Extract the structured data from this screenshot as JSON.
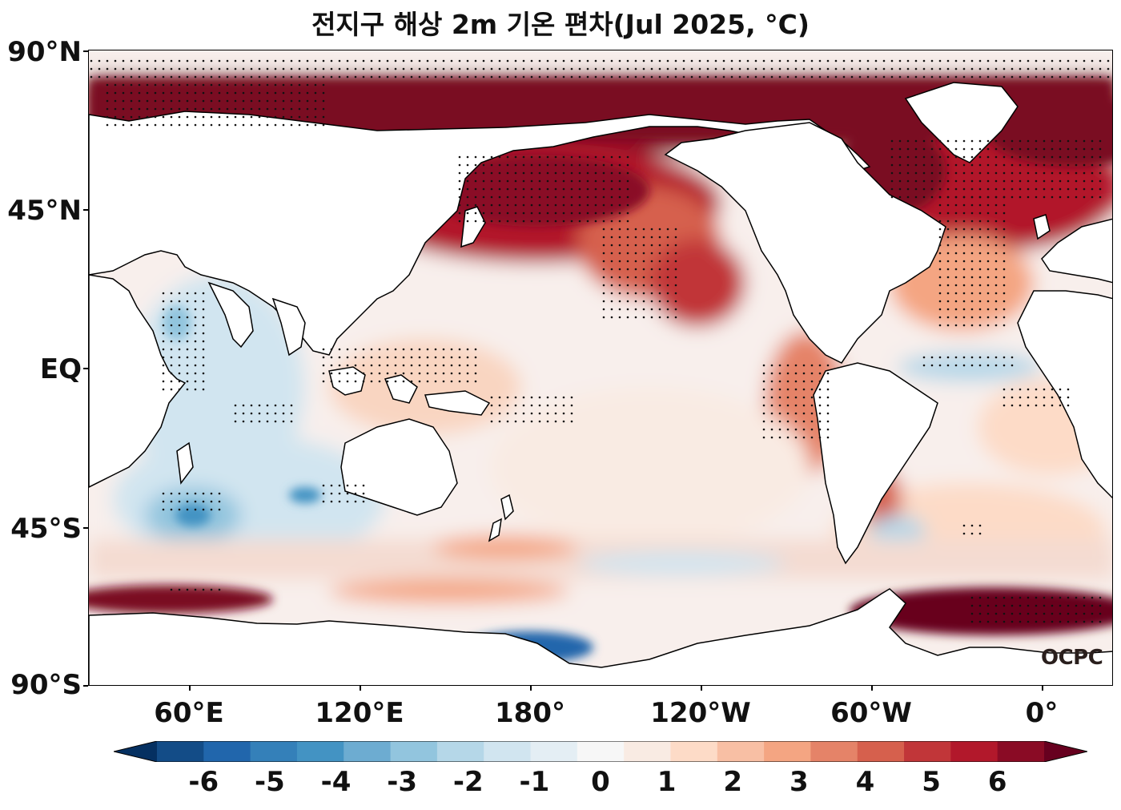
{
  "title": "전지구 해상 2m 기온 편차(Jul 2025, °C)",
  "y_axis": {
    "ticks": [
      {
        "label": "90°N",
        "lat": 90
      },
      {
        "label": "45°N",
        "lat": 45
      },
      {
        "label": "EQ",
        "lat": 0
      },
      {
        "label": "45°S",
        "lat": -45
      },
      {
        "label": "90°S",
        "lat": -90
      }
    ]
  },
  "x_axis": {
    "ticks": [
      {
        "label": "60°E",
        "lon": 60
      },
      {
        "label": "120°E",
        "lon": 120
      },
      {
        "label": "180°",
        "lon": 180
      },
      {
        "label": "120°W",
        "lon": 240
      },
      {
        "label": "60°W",
        "lon": 300
      },
      {
        "label": "0°",
        "lon": 360
      }
    ]
  },
  "colorbar": {
    "labels": [
      "-6",
      "-5",
      "-4",
      "-3",
      "-2",
      "-1",
      "0",
      "1",
      "2",
      "3",
      "4",
      "5",
      "6"
    ],
    "colors": [
      "#053061",
      "#134c87",
      "#2166ac",
      "#3480b9",
      "#4393c3",
      "#6dacd1",
      "#92c5de",
      "#b5d7e8",
      "#d1e5f0",
      "#e4eef4",
      "#f7f7f7",
      "#f9ebe3",
      "#fddbc7",
      "#f8bfa4",
      "#f4a582",
      "#e58368",
      "#d6604d",
      "#c13639",
      "#b2182b",
      "#8a0b25",
      "#67001f"
    ]
  },
  "logo": "OCPC",
  "colors": {
    "ocean_base": "#f8efec",
    "warm_extreme": "#7a0a22",
    "cool_extreme": "#2166ac"
  }
}
